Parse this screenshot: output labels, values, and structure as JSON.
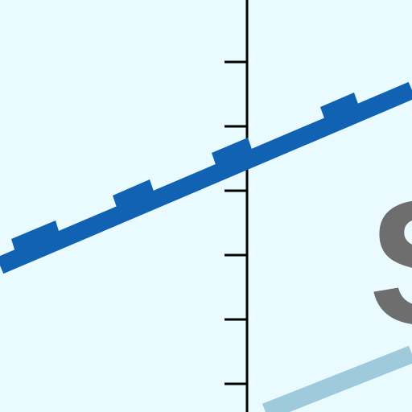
{
  "colors": {
    "background": "#e9fbfe",
    "axis": "#000000",
    "primary_line": "#1262b3",
    "secondary_line": "#9fcadb",
    "glyph": "#6e6e6e"
  },
  "glyph": {
    "text": "S"
  }
}
